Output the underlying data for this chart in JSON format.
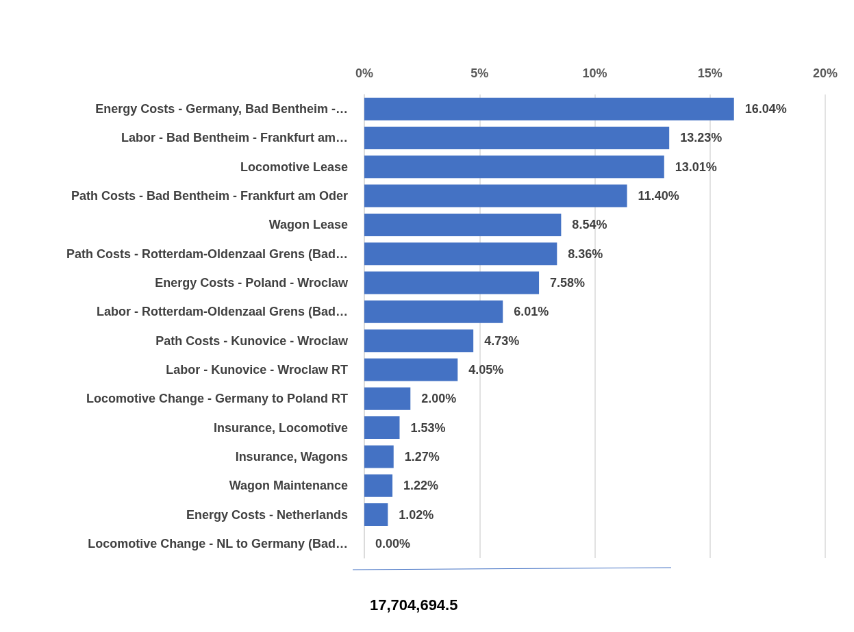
{
  "chart_data": {
    "type": "bar",
    "orientation": "horizontal",
    "categories": [
      "Energy Costs - Germany, Bad Bentheim -…",
      "Labor - Bad Bentheim - Frankfurt am…",
      "Locomotive Lease",
      "Path Costs - Bad Bentheim - Frankfurt am Oder",
      "Wagon Lease",
      "Path Costs - Rotterdam-Oldenzaal Grens (Bad…",
      "Energy Costs - Poland - Wroclaw",
      "Labor - Rotterdam-Oldenzaal Grens (Bad…",
      "Path Costs - Kunovice - Wroclaw",
      "Labor - Kunovice - Wroclaw RT",
      "Locomotive Change - Germany to Poland RT",
      "Insurance, Locomotive",
      "Insurance, Wagons",
      "Wagon Maintenance",
      "Energy Costs - Netherlands",
      "Locomotive Change - NL to Germany (Bad…"
    ],
    "values": [
      16.04,
      13.23,
      13.01,
      11.4,
      8.54,
      8.36,
      7.58,
      6.01,
      4.73,
      4.05,
      2.0,
      1.53,
      1.27,
      1.22,
      1.02,
      0.0
    ],
    "value_labels": [
      "16.04%",
      "13.23%",
      "13.01%",
      "11.40%",
      "8.54%",
      "8.36%",
      "7.58%",
      "6.01%",
      "4.73%",
      "4.05%",
      "2.00%",
      "1.53%",
      "1.27%",
      "1.22%",
      "1.02%",
      "0.00%"
    ],
    "color": "#4472c4",
    "xlim": [
      0,
      20
    ],
    "xticks": [
      {
        "value": 0,
        "label": "0%"
      },
      {
        "value": 5,
        "label": "5%"
      },
      {
        "value": 10,
        "label": "10%"
      },
      {
        "value": 15,
        "label": "15%"
      },
      {
        "value": 20,
        "label": "20%"
      }
    ],
    "grid": "x",
    "annotations": [
      "17,704,694.5"
    ]
  }
}
